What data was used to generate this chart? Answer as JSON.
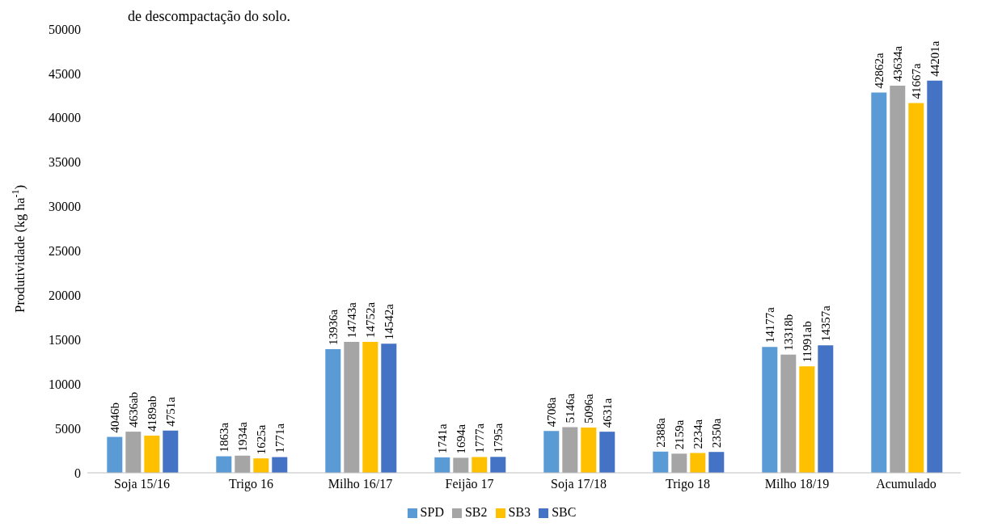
{
  "chart_data": {
    "type": "bar",
    "annotations": [
      "de descompactação do solo."
    ],
    "ylabel": "Produtividade (kg ha$^{-1}$)",
    "categories": [
      "Soja 15/16",
      "Trigo 16",
      "Milho 16/17",
      "Feijão 17",
      "Soja 17/18",
      "Trigo 18",
      "Milho 18/19",
      "Acumulado"
    ],
    "series": [
      {
        "name": "SPD",
        "color": "#5b9bd5",
        "values": [
          4046,
          1863,
          13936,
          1741,
          4708,
          2388,
          14177,
          42862
        ],
        "value_labels": [
          "4046b",
          "1863a",
          "13936a",
          "1741a",
          "4708a",
          "2388a",
          "14177a",
          "42862a"
        ]
      },
      {
        "name": "SB2",
        "color": "#a5a5a5",
        "values": [
          4636,
          1934,
          14743,
          1694,
          5146,
          2159,
          13318,
          43634
        ],
        "value_labels": [
          "4636ab",
          "1934a",
          "14743a",
          "1694a",
          "5146a",
          "2159a",
          "13318b",
          "43634a"
        ]
      },
      {
        "name": "SB3",
        "color": "#ffc000",
        "values": [
          4189,
          1625,
          14752,
          1777,
          5096,
          2234,
          11991,
          41667
        ],
        "value_labels": [
          "4189ab",
          "1625a",
          "14752a",
          "1777a",
          "5096a",
          "2234a",
          "11991ab",
          "41667a"
        ]
      },
      {
        "name": "SBC",
        "color": "#4472c4",
        "values": [
          4751,
          1771,
          14542,
          1795,
          4631,
          2350,
          14357,
          44201
        ],
        "value_labels": [
          "4751a",
          "1771a",
          "14542a",
          "1795a",
          "4631a",
          "2350a",
          "14357a",
          "44201a"
        ]
      }
    ],
    "ylim": [
      0,
      50000
    ],
    "yticks": [
      0,
      5000,
      10000,
      15000,
      20000,
      25000,
      30000,
      35000,
      40000,
      45000,
      50000
    ],
    "grid": false,
    "legend": "bottom"
  }
}
